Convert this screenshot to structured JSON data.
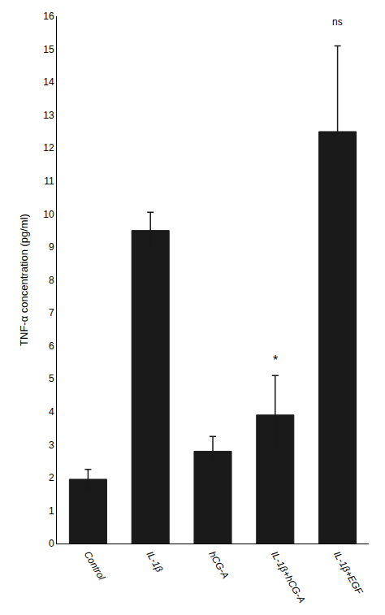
{
  "chart_data": {
    "type": "bar",
    "categories": [
      "Control",
      "IL-1β",
      "hCG-A",
      "IL-1β+hCG-A",
      "IL-1β+EGF"
    ],
    "values": [
      1.95,
      9.5,
      2.8,
      3.9,
      12.5
    ],
    "errors": [
      0.3,
      0.55,
      0.45,
      1.2,
      2.6
    ],
    "color": "#1a1a1a",
    "ylabel": "TNF-α concentration (pg/ml)",
    "ylim": [
      0,
      16
    ],
    "yticks": [
      0,
      1,
      2,
      3,
      4,
      5,
      6,
      7,
      8,
      9,
      10,
      11,
      12,
      13,
      14,
      15,
      16
    ],
    "annotations": [
      {
        "text": "*",
        "category": "IL-1β+hCG-A",
        "y": 5.3
      },
      {
        "text": "ns",
        "category": "IL-1β+EGF",
        "y": 15.6
      }
    ],
    "grid": false
  }
}
